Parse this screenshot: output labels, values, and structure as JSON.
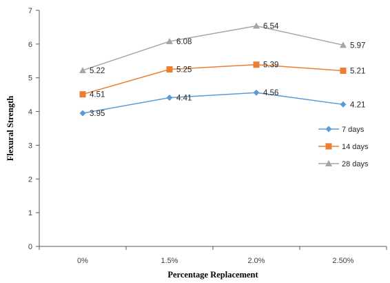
{
  "chart_data": {
    "type": "line",
    "title": "",
    "xlabel": "Percentage Replacement",
    "ylabel": "Flexural Strength",
    "categories": [
      "0%",
      "1.5%",
      "2.0%",
      "2.50%"
    ],
    "ylim": [
      0,
      7
    ],
    "yticks": [
      0,
      1,
      2,
      3,
      4,
      5,
      6,
      7
    ],
    "grid": false,
    "legend_position": "right",
    "series": [
      {
        "name": "7 days",
        "values": [
          3.95,
          4.41,
          4.56,
          4.21
        ],
        "color": "#5B9BD5",
        "marker": "diamond"
      },
      {
        "name": "14 days",
        "values": [
          4.51,
          5.25,
          5.39,
          5.21
        ],
        "color": "#ED7D31",
        "marker": "square"
      },
      {
        "name": "28 days",
        "values": [
          5.22,
          6.08,
          6.54,
          5.97
        ],
        "color": "#A5A5A5",
        "marker": "triangle"
      }
    ]
  }
}
